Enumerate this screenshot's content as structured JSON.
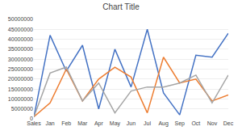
{
  "chart_data": {
    "type": "line",
    "title": "Chart Title",
    "categories": [
      "Sales",
      "Jan",
      "Feb",
      "Mar",
      "Apr",
      "May",
      "Jun",
      "Jul",
      "Aug",
      "Sep",
      "Oct",
      "Nov",
      "Dec"
    ],
    "series": [
      {
        "color": "#4472C4",
        "values": [
          1000000,
          42000000,
          24000000,
          37000000,
          5000000,
          35000000,
          16000000,
          45000000,
          13000000,
          2000000,
          32000000,
          31000000,
          43000000
        ]
      },
      {
        "color": "#ED7D31",
        "values": [
          1000000,
          8000000,
          25000000,
          9000000,
          20000000,
          26000000,
          21000000,
          3000000,
          31000000,
          18000000,
          20000000,
          9000000,
          12000000
        ]
      },
      {
        "color": "#A5A5A5",
        "values": [
          1000000,
          23000000,
          26000000,
          9000000,
          18000000,
          3000000,
          14000000,
          16000000,
          16000000,
          18000000,
          22000000,
          8000000,
          22000000
        ]
      }
    ],
    "ylim": [
      0,
      50000000
    ],
    "yticks": [
      0,
      5000000,
      10000000,
      15000000,
      20000000,
      25000000,
      30000000,
      35000000,
      40000000,
      45000000,
      50000000
    ],
    "grid": true
  }
}
